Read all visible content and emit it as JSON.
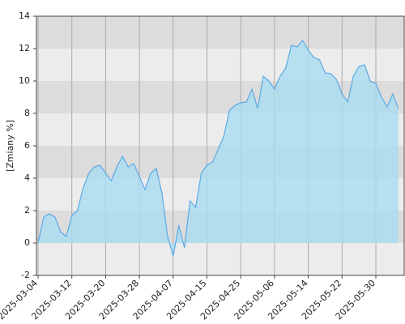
{
  "chart_data": {
    "type": "area",
    "ylabel": "[Zmiany %]",
    "categories": [
      "2025-03-04",
      null,
      null,
      null,
      null,
      null,
      "2025-03-12",
      null,
      null,
      null,
      null,
      null,
      "2025-03-20",
      null,
      null,
      null,
      null,
      null,
      "2025-03-28",
      null,
      null,
      null,
      null,
      null,
      "2025-04-07",
      null,
      null,
      null,
      null,
      null,
      "2025-04-15",
      null,
      null,
      null,
      null,
      null,
      "2025-04-25",
      null,
      null,
      null,
      null,
      null,
      "2025-05-06",
      null,
      null,
      null,
      null,
      null,
      "2025-05-14",
      null,
      null,
      null,
      null,
      null,
      "2025-05-22",
      null,
      null,
      null,
      null,
      null,
      "2025-05-30",
      null,
      null,
      null,
      null
    ],
    "series": [
      {
        "color": "#5aaae6",
        "fill": "#a9dcf0",
        "values": [
          0.0,
          1.6,
          1.8,
          1.6,
          0.7,
          0.4,
          1.7,
          2.0,
          3.4,
          4.3,
          4.7,
          4.8,
          4.3,
          3.85,
          4.7,
          5.35,
          4.7,
          4.9,
          4.1,
          3.3,
          4.3,
          4.6,
          3.1,
          0.4,
          -0.8,
          1.1,
          -0.3,
          2.6,
          2.2,
          4.3,
          4.8,
          5.0,
          5.8,
          6.6,
          8.2,
          8.5,
          8.65,
          8.7,
          9.5,
          8.3,
          10.3,
          10.0,
          9.5,
          10.3,
          10.8,
          12.2,
          12.1,
          12.5,
          11.9,
          11.45,
          11.3,
          10.5,
          10.45,
          10.1,
          9.2,
          8.7,
          10.3,
          10.9,
          11.0,
          10.0,
          9.85,
          9.0,
          8.4,
          9.2,
          8.3
        ]
      }
    ],
    "ylim": [
      -2,
      14
    ],
    "yticks": [
      -2,
      0,
      2,
      4,
      6,
      8,
      10,
      12,
      14
    ],
    "grid": true
  }
}
